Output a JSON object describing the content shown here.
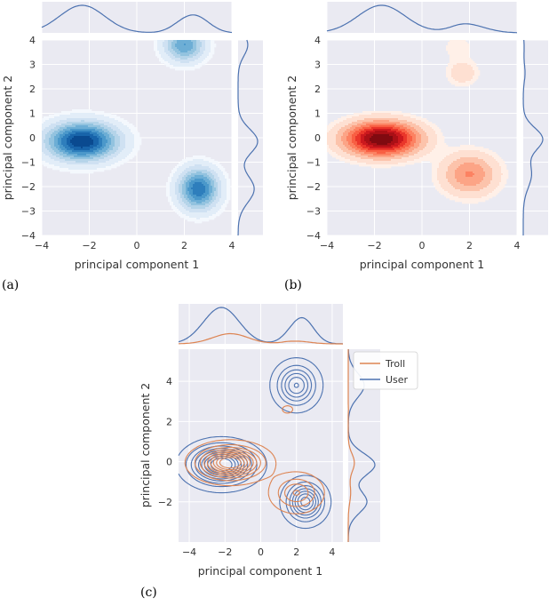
{
  "colors": {
    "plot_bg": "#eaeaf2",
    "grid": "#ffffff",
    "kde_line": "#4c72b0",
    "troll": "#dd8452",
    "user": "#4c72b0",
    "blues": [
      "#f4f8fd",
      "#e2edf8",
      "#cfe1f2",
      "#b5d4e9",
      "#93c3df",
      "#6daed5",
      "#4b98ca",
      "#2e7ebc",
      "#1864aa",
      "#0a4a90"
    ],
    "reds": [
      "#fff0e8",
      "#fee0d2",
      "#fcc3ab",
      "#fca486",
      "#fc8262",
      "#f85f43",
      "#ea362a",
      "#cc191e",
      "#aa1016",
      "#800a10"
    ]
  },
  "chart_data": [
    {
      "panel": "(a)",
      "type": "kde-2d-filled",
      "cmap": "blues",
      "xlabel": "principal component 1",
      "ylabel": "principal component 2",
      "xlim": [
        -4,
        4
      ],
      "ylim": [
        -4,
        4
      ],
      "xticks": [
        -4,
        -2,
        0,
        2,
        4
      ],
      "yticks": [
        -4,
        -3,
        -2,
        -1,
        0,
        1,
        2,
        3,
        4
      ],
      "clusters": [
        {
          "x": -2.3,
          "y": -0.15,
          "sx": 0.95,
          "sy": 0.5,
          "weight": 1.0
        },
        {
          "x": 2.0,
          "y": 3.8,
          "sx": 0.55,
          "sy": 0.45,
          "weight": 0.55
        },
        {
          "x": 2.6,
          "y": -2.1,
          "sx": 0.55,
          "sy": 0.55,
          "weight": 0.75
        }
      ]
    },
    {
      "panel": "(b)",
      "type": "kde-2d-filled",
      "cmap": "reds",
      "xlabel": "principal component 1",
      "ylabel": "principal component 2",
      "xlim": [
        -4,
        4
      ],
      "ylim": [
        -4,
        4
      ],
      "xticks": [
        -4,
        -2,
        0,
        2,
        4
      ],
      "yticks": [
        -4,
        -3,
        -2,
        -1,
        0,
        1,
        2,
        3,
        4
      ],
      "clusters": [
        {
          "x": -1.7,
          "y": -0.05,
          "sx": 1.0,
          "sy": 0.45,
          "weight": 1.0
        },
        {
          "x": 1.7,
          "y": 2.65,
          "sx": 0.45,
          "sy": 0.35,
          "weight": 0.12
        },
        {
          "x": 1.5,
          "y": 3.7,
          "sx": 0.45,
          "sy": 0.35,
          "weight": 0.06
        },
        {
          "x": 2.0,
          "y": -1.5,
          "sx": 0.75,
          "sy": 0.55,
          "weight": 0.35
        }
      ]
    },
    {
      "panel": "(c)",
      "type": "kde-2d-contour",
      "xlabel": "principal component 1",
      "ylabel": "principal component 2",
      "xlim": [
        -4.6,
        4.6
      ],
      "ylim": [
        -4,
        5.6
      ],
      "xticks": [
        -4,
        -2,
        0,
        2,
        4
      ],
      "yticks": [
        -2,
        0,
        2,
        4
      ],
      "legend": {
        "position": "top-right",
        "entries": [
          "Troll",
          "User"
        ]
      },
      "series": [
        {
          "name": "User",
          "clusters": [
            {
              "x": -2.2,
              "y": -0.15,
              "sx": 1.0,
              "sy": 0.55,
              "weight": 1.0
            },
            {
              "x": 2.0,
              "y": 3.8,
              "sx": 0.65,
              "sy": 0.6,
              "weight": 0.55
            },
            {
              "x": 2.5,
              "y": -2.0,
              "sx": 0.6,
              "sy": 0.55,
              "weight": 0.7
            }
          ]
        },
        {
          "name": "Troll",
          "clusters": [
            {
              "x": -1.7,
              "y": -0.05,
              "sx": 1.0,
              "sy": 0.45,
              "weight": 1.0
            },
            {
              "x": 1.5,
              "y": 2.6,
              "sx": 0.2,
              "sy": 0.12,
              "weight": 0.12
            },
            {
              "x": 2.0,
              "y": -1.55,
              "sx": 0.75,
              "sy": 0.5,
              "weight": 0.35
            }
          ]
        }
      ]
    }
  ]
}
